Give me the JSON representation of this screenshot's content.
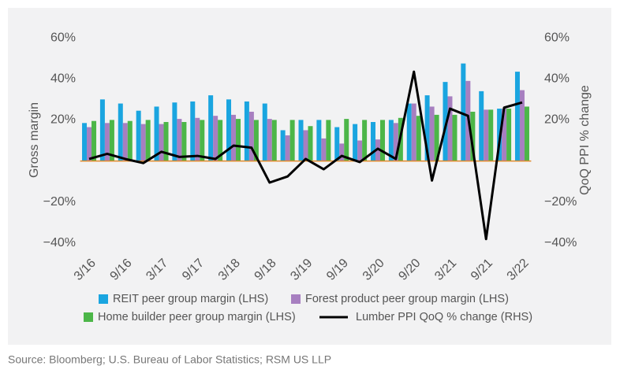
{
  "chart_data": {
    "type": "bar-line",
    "y_label": "Gross margin",
    "y2_label": "QoQ PPI % change",
    "source": "Source: Bloomberg; U.S. Bureau of Labor Statistics; RSM US LLP",
    "categories": [
      "3/16",
      null,
      "9/16",
      null,
      "3/17",
      null,
      "9/17",
      null,
      "3/18",
      null,
      "9/18",
      null,
      "3/19",
      null,
      "9/19",
      null,
      "3/20",
      null,
      "9/20",
      null,
      "3/21",
      null,
      "9/21",
      null,
      "3/22"
    ],
    "series": [
      {
        "name": "REIT peer group margin (LHS)",
        "color": "#1aa5e0",
        "values": [
          18.5,
          30,
          28,
          24.5,
          26.5,
          28.5,
          29,
          32,
          30,
          29,
          28,
          15,
          20,
          20,
          16.5,
          18,
          19,
          20,
          28,
          32,
          38.5,
          47.5,
          34,
          25.5,
          43.5
        ]
      },
      {
        "name": "Forest product peer group margin (LHS)",
        "color": "#a77fc0",
        "values": [
          16.5,
          18.5,
          18.5,
          18,
          18,
          20.5,
          21,
          22,
          22.5,
          24,
          20.5,
          12.5,
          15,
          11,
          8.5,
          10,
          10.5,
          18.5,
          28,
          26.5,
          31.5,
          39,
          25,
          25.5,
          34.5
        ]
      },
      {
        "name": "Home builder peer group margin (LHS)",
        "color": "#4cb648",
        "values": [
          19.5,
          20,
          19.5,
          20,
          19,
          19,
          20,
          20,
          20.5,
          20,
          20,
          20,
          17,
          20,
          20.5,
          20,
          20,
          21,
          22,
          22.5,
          22.5,
          24,
          25,
          25.5,
          26.5
        ]
      },
      {
        "name": "Lumber PPI QoQ % change (RHS)",
        "color": "#000000",
        "axis": "y2",
        "values": [
          1,
          3.5,
          1,
          -1,
          4.5,
          2,
          2.5,
          1,
          7.5,
          6.5,
          -10.5,
          -7.5,
          1,
          -4,
          2.5,
          -0.5,
          6,
          1,
          43.5,
          -9.5,
          25.5,
          22,
          -38,
          26,
          28.5
        ]
      }
    ],
    "ylim": [
      -45,
      65
    ],
    "yticks": [
      {
        "value": -40,
        "label": "−40%"
      },
      {
        "value": -20,
        "label": "−20%"
      },
      {
        "value": 20,
        "label": "20%"
      },
      {
        "value": 40,
        "label": "40%"
      },
      {
        "value": 60,
        "label": "60%"
      }
    ],
    "y2lim": [
      -45,
      65
    ],
    "y2ticks": [
      {
        "value": -40,
        "label": "−40%"
      },
      {
        "value": -20,
        "label": "−20%"
      },
      {
        "value": 20,
        "label": "20%"
      },
      {
        "value": 40,
        "label": "40%"
      },
      {
        "value": 60,
        "label": "60%"
      }
    ],
    "zero_line_color": "#e08a2a"
  }
}
